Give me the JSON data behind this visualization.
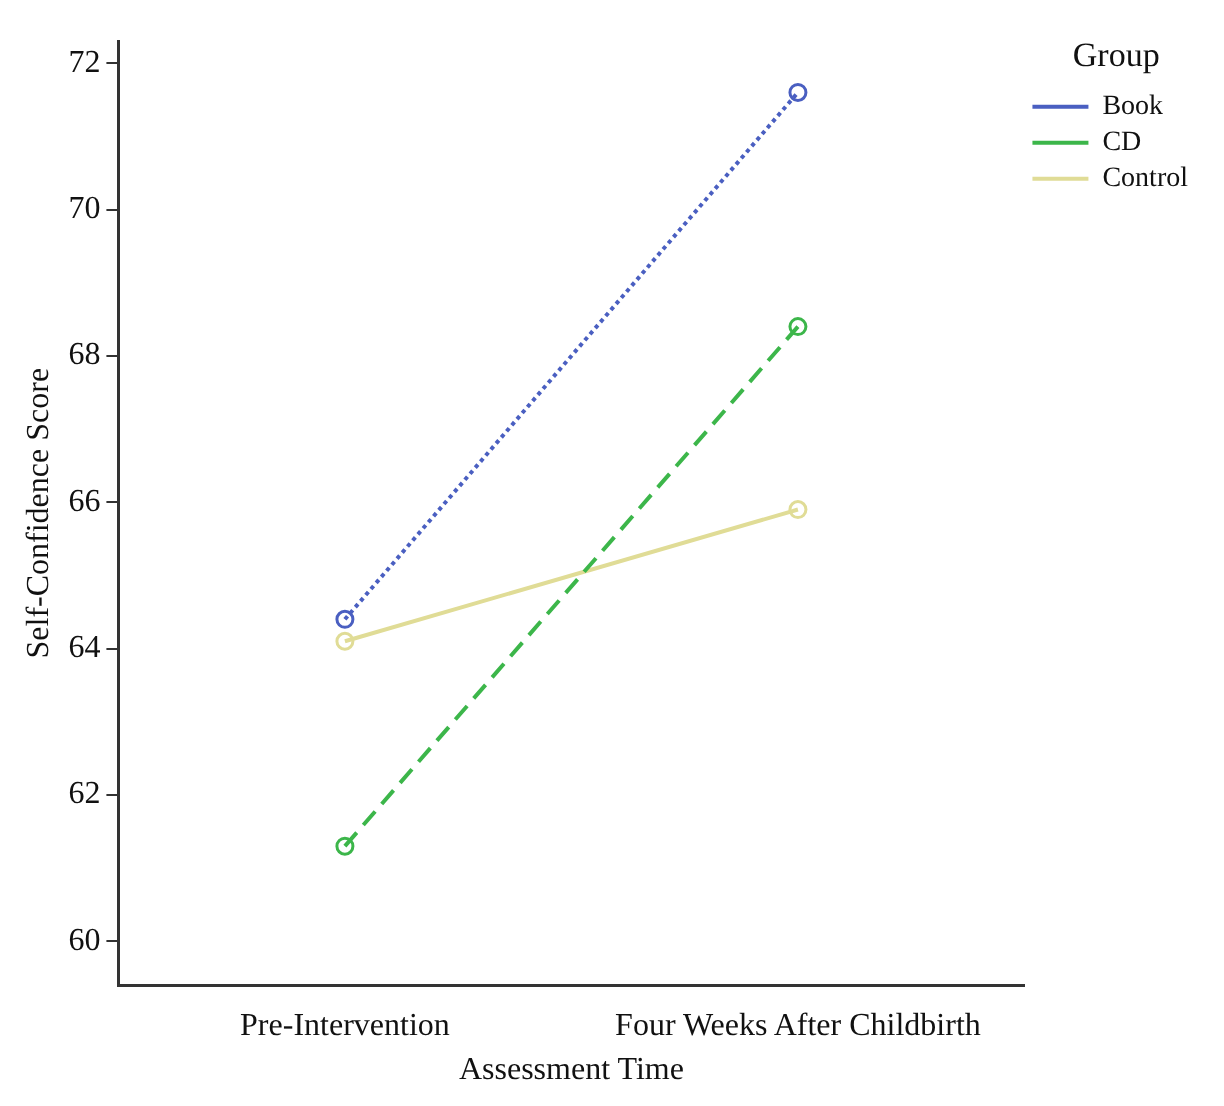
{
  "chart_data": {
    "type": "line",
    "xlabel": "Assessment Time",
    "ylabel": "Self-Confidence Score",
    "legend_title": "Group",
    "categories": [
      "Pre-Intervention",
      "Four Weeks After Childbirth"
    ],
    "series": [
      {
        "name": "Book",
        "color": "#4a5fc1",
        "values": [
          64.4,
          71.6
        ],
        "line_style": "dotted"
      },
      {
        "name": "CD",
        "color": "#3cb64a",
        "values": [
          61.3,
          68.4
        ],
        "line_style": "dashed"
      },
      {
        "name": "Control",
        "color": "#e0dc96",
        "values": [
          64.1,
          65.9
        ],
        "line_style": "solid"
      }
    ],
    "ylim": [
      59.4,
      72.3
    ],
    "yticks": [
      60,
      62,
      64,
      66,
      68,
      70,
      72
    ],
    "grid": false,
    "legend": "top right",
    "marker": "circle"
  }
}
